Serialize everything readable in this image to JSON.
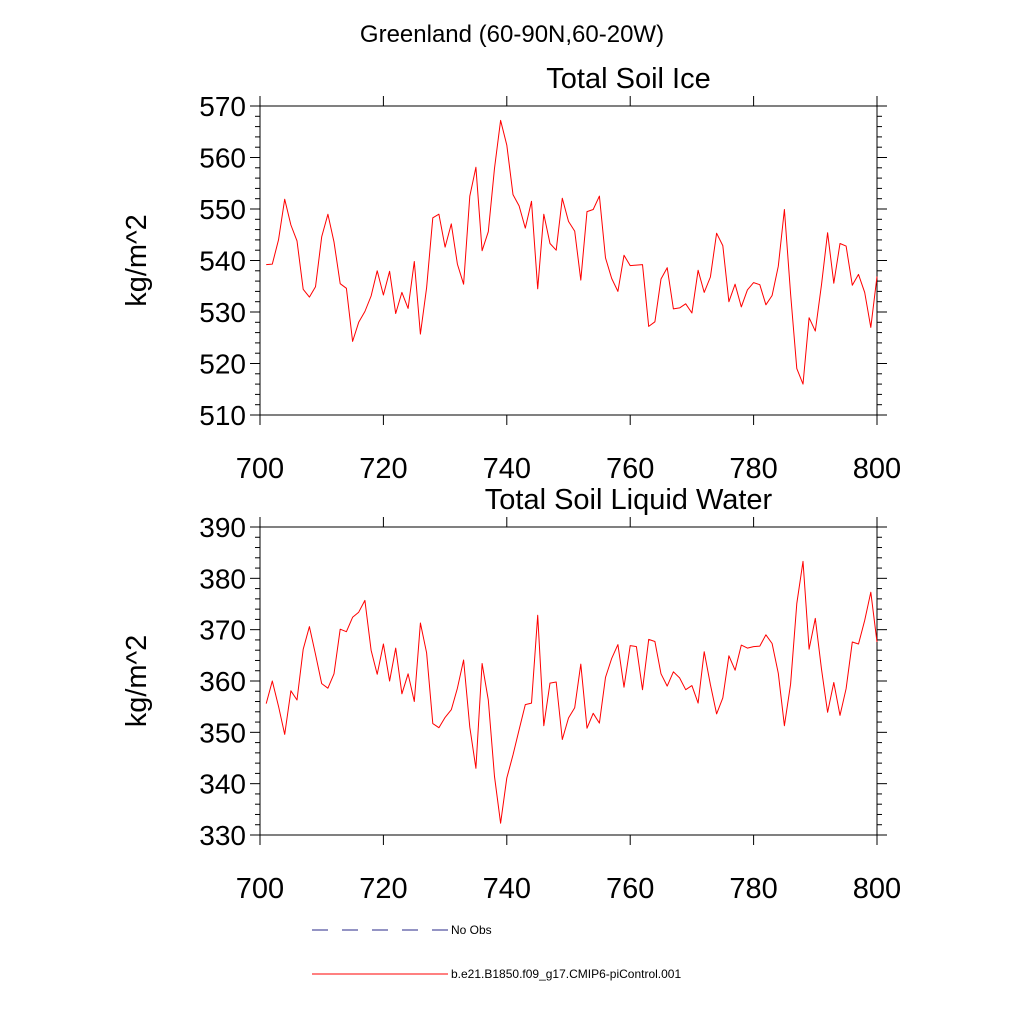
{
  "page_title": "Greenland (60-90N,60-20W)",
  "colors": {
    "series": "#ff0000",
    "obs": "#2a2a8a",
    "axis": "#000000"
  },
  "legend": {
    "obs_label": "No Obs",
    "model_label": "b.e21.B1850.f09_g17.CMIP6-piControl.001"
  },
  "chart_data": [
    {
      "type": "line",
      "title": "Total Soil Ice",
      "xlabel": "",
      "ylabel": "kg/m^2",
      "xlim": [
        700,
        800
      ],
      "ylim": [
        510,
        570
      ],
      "xticks": [
        700,
        720,
        740,
        760,
        780,
        800
      ],
      "yticks": [
        510,
        520,
        530,
        540,
        550,
        560,
        570
      ],
      "grid": false,
      "series": [
        {
          "name": "b.e21.B1850.f09_g17.CMIP6-piControl.001",
          "x_start": 701,
          "x_step": 1,
          "values": [
            539.2,
            539.3,
            544.0,
            551.9,
            546.9,
            543.8,
            534.4,
            532.9,
            534.9,
            544.6,
            549.0,
            543.6,
            535.5,
            534.6,
            524.3,
            528.0,
            530.1,
            533.1,
            538.0,
            533.3,
            537.9,
            529.7,
            533.8,
            530.7,
            539.8,
            525.7,
            534.7,
            548.3,
            549.0,
            542.6,
            547.1,
            539.3,
            535.4,
            552.5,
            558.1,
            541.9,
            545.6,
            557.9,
            567.2,
            562.4,
            552.8,
            550.6,
            546.3,
            551.5,
            534.5,
            549.0,
            543.3,
            542.0,
            552.1,
            547.6,
            545.7,
            536.2,
            549.5,
            549.9,
            552.5,
            540.5,
            536.5,
            534.0,
            541.0,
            539.0,
            539.1,
            539.2,
            527.2,
            528.1,
            536.4,
            538.6,
            530.6,
            530.8,
            531.6,
            529.8,
            538.1,
            533.8,
            536.8,
            545.3,
            542.9,
            532.0,
            535.4,
            531.0,
            534.3,
            535.7,
            535.3,
            531.4,
            533.2,
            538.9,
            549.9,
            533.5,
            519.0,
            516.0,
            528.9,
            526.3,
            535.3,
            545.4,
            535.6,
            543.3,
            542.8,
            535.2,
            537.3,
            533.8,
            527.0,
            536.9
          ]
        }
      ]
    },
    {
      "type": "line",
      "title": "Total Soil Liquid Water",
      "xlabel": "",
      "ylabel": "kg/m^2",
      "xlim": [
        700,
        800
      ],
      "ylim": [
        330,
        390
      ],
      "xticks": [
        700,
        720,
        740,
        760,
        780,
        800
      ],
      "yticks": [
        330,
        340,
        350,
        360,
        370,
        380,
        390
      ],
      "grid": false,
      "series": [
        {
          "name": "b.e21.B1850.f09_g17.CMIP6-piControl.001",
          "x_start": 701,
          "x_step": 1,
          "values": [
            355.6,
            360.0,
            355.1,
            349.6,
            358.1,
            356.3,
            366.2,
            370.6,
            365.2,
            359.5,
            358.6,
            361.4,
            370.1,
            369.6,
            372.4,
            373.4,
            375.7,
            366.0,
            361.3,
            367.2,
            360.0,
            366.4,
            357.5,
            361.4,
            356.0,
            371.3,
            365.5,
            351.7,
            350.9,
            352.9,
            354.4,
            358.6,
            364.1,
            351.0,
            343.0,
            363.4,
            356.3,
            341.4,
            332.3,
            341.1,
            345.6,
            350.5,
            355.4,
            355.7,
            372.8,
            351.3,
            359.6,
            359.8,
            348.6,
            352.8,
            354.8,
            363.3,
            350.8,
            353.7,
            351.8,
            360.7,
            364.4,
            367.1,
            358.8,
            366.9,
            366.7,
            358.3,
            368.1,
            367.7,
            361.4,
            359.0,
            361.8,
            360.6,
            358.3,
            359.1,
            355.7,
            365.7,
            359.3,
            353.6,
            356.7,
            364.9,
            362.1,
            367.0,
            366.4,
            366.7,
            366.8,
            369.0,
            367.3,
            361.5,
            351.3,
            359.4,
            375.1,
            383.3,
            366.2,
            372.2,
            362.3,
            353.9,
            359.7,
            353.3,
            358.5,
            367.6,
            367.2,
            371.8,
            377.3,
            367.6
          ]
        }
      ]
    }
  ]
}
